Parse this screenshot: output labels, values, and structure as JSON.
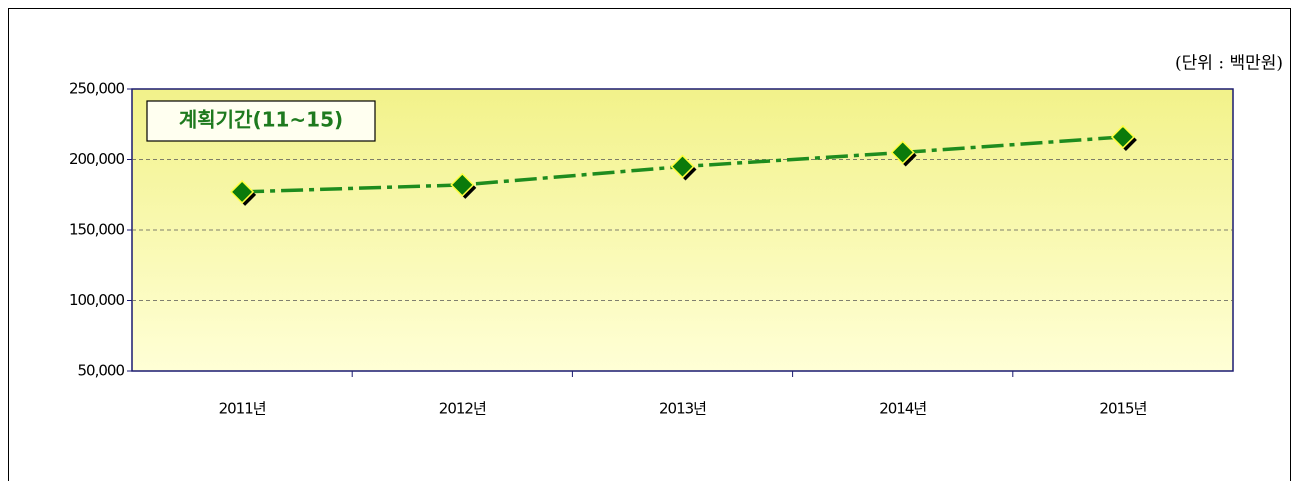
{
  "chart_data": {
    "type": "line",
    "unit_note": "(단위 : 백만원)",
    "categories": [
      "2011년",
      "2012년",
      "2013년",
      "2014년",
      "2015년"
    ],
    "series": [
      {
        "name": "계획기간(11~15)",
        "color": "#1e8c1e",
        "values": [
          177000,
          182000,
          195000,
          205000,
          216000
        ]
      }
    ],
    "ylim": [
      50000,
      250000
    ],
    "yticks": [
      {
        "value": 50000,
        "label": "50,000"
      },
      {
        "value": 100000,
        "label": "100,000"
      },
      {
        "value": 150000,
        "label": "150,000"
      },
      {
        "value": 200000,
        "label": "200,000"
      },
      {
        "value": 250000,
        "label": "250,000"
      }
    ],
    "grid": true
  }
}
